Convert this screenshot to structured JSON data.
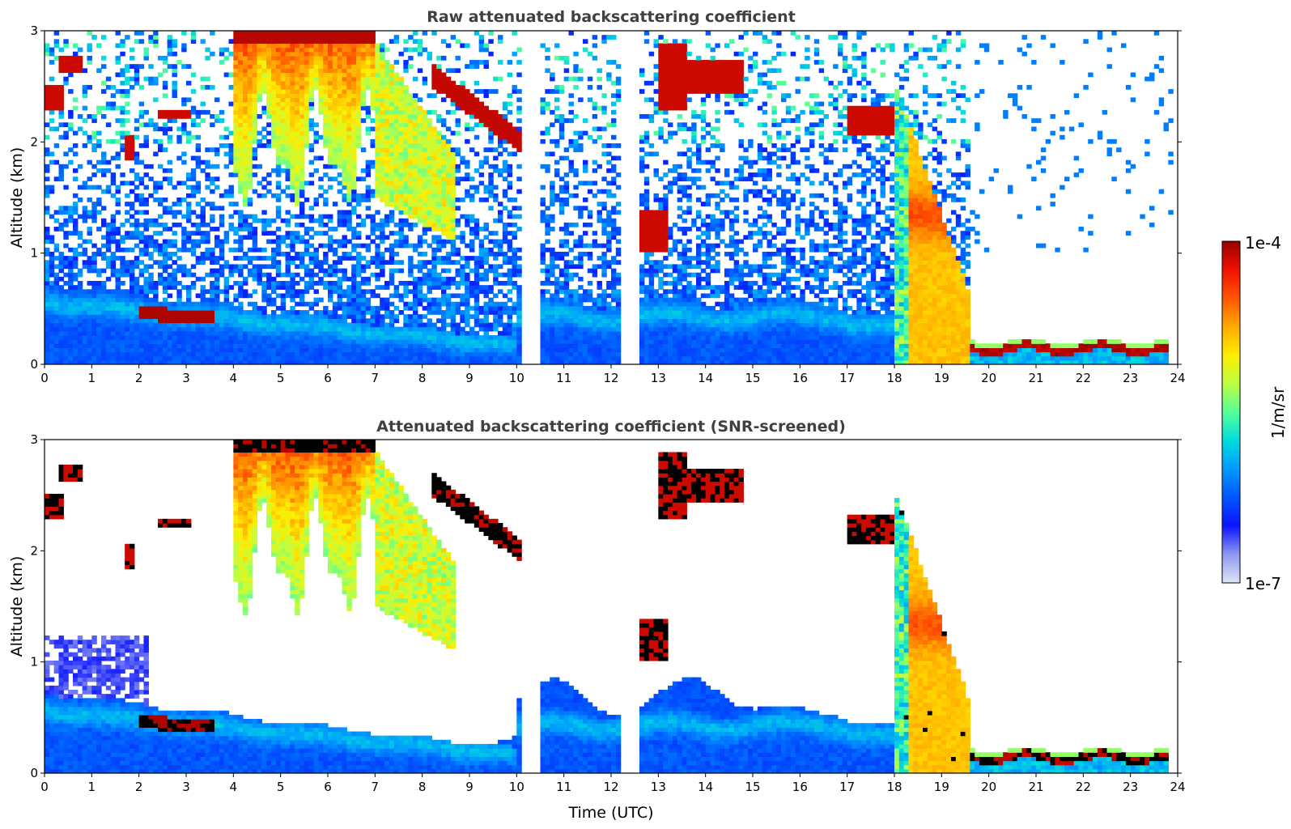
{
  "colors": {
    "colormap": [
      "#dfe3f7",
      "#8f99f0",
      "#0a14ff",
      "#0055ff",
      "#0099ff",
      "#00dddd",
      "#55ff99",
      "#bbff44",
      "#ffee00",
      "#ffaa00",
      "#ff5500",
      "#ee1100",
      "#990000"
    ],
    "saturated": "#000000"
  },
  "chart_data": [
    {
      "type": "heatmap",
      "title": "Raw attenuated backscattering coefficient",
      "xlabel": "",
      "ylabel": "Altitude (km)",
      "xlim": [
        0,
        24
      ],
      "ylim": [
        0,
        3
      ],
      "x_ticks": [
        "0",
        "1",
        "2",
        "3",
        "4",
        "5",
        "6",
        "7",
        "8",
        "9",
        "10",
        "11",
        "12",
        "13",
        "14",
        "15",
        "16",
        "17",
        "18",
        "19",
        "20",
        "21",
        "22",
        "23",
        "24"
      ],
      "y_ticks": [
        "0",
        "1",
        "2",
        "3"
      ],
      "data_gaps_hours": [
        [
          10.15,
          10.55
        ],
        [
          12.25,
          12.6
        ]
      ],
      "features": [
        {
          "kind": "boundary-layer",
          "t": [
            0,
            24
          ],
          "top_km": [
            0.7,
            0.15
          ],
          "level": 0.35
        },
        {
          "kind": "cloud",
          "t": [
            4.0,
            7.0
          ],
          "alt_km": [
            2.0,
            3.0
          ],
          "level": 0.8
        },
        {
          "kind": "cloud",
          "t": [
            8.2,
            10.1
          ],
          "alt_km": [
            1.9,
            2.7
          ],
          "level": 1.0
        },
        {
          "kind": "cloud",
          "t": [
            18.0,
            19.6
          ],
          "alt_km": [
            0.0,
            2.5
          ],
          "level": 0.75
        }
      ]
    },
    {
      "type": "heatmap",
      "title": "Attenuated backscattering coefficient (SNR-screened)",
      "xlabel": "Time (UTC)",
      "ylabel": "Altitude (km)",
      "xlim": [
        0,
        24
      ],
      "ylim": [
        0,
        3
      ],
      "x_ticks": [
        "0",
        "1",
        "2",
        "3",
        "4",
        "5",
        "6",
        "7",
        "8",
        "9",
        "10",
        "11",
        "12",
        "13",
        "14",
        "15",
        "16",
        "17",
        "18",
        "19",
        "20",
        "21",
        "22",
        "23",
        "24"
      ],
      "y_ticks": [
        "0",
        "1",
        "2",
        "3"
      ],
      "data_gaps_hours": [
        [
          10.15,
          10.55
        ],
        [
          12.25,
          12.6
        ]
      ],
      "features": [
        {
          "kind": "boundary-layer",
          "t": [
            0,
            24
          ],
          "top_km": [
            0.7,
            0.15
          ],
          "level": 0.35
        },
        {
          "kind": "cloud",
          "t": [
            4.0,
            7.0
          ],
          "alt_km": [
            2.0,
            3.0
          ],
          "level": 0.8
        },
        {
          "kind": "cloud",
          "t": [
            8.2,
            10.1
          ],
          "alt_km": [
            1.9,
            2.7
          ],
          "level": 1.0
        },
        {
          "kind": "cloud",
          "t": [
            18.0,
            19.6
          ],
          "alt_km": [
            0.0,
            2.5
          ],
          "level": 0.75
        }
      ]
    }
  ],
  "colorbar": {
    "label": "1/m/sr",
    "max_label": "1e-4",
    "min_label": "1e-7",
    "range": [
      1e-07,
      0.0001
    ],
    "scale": "log"
  }
}
